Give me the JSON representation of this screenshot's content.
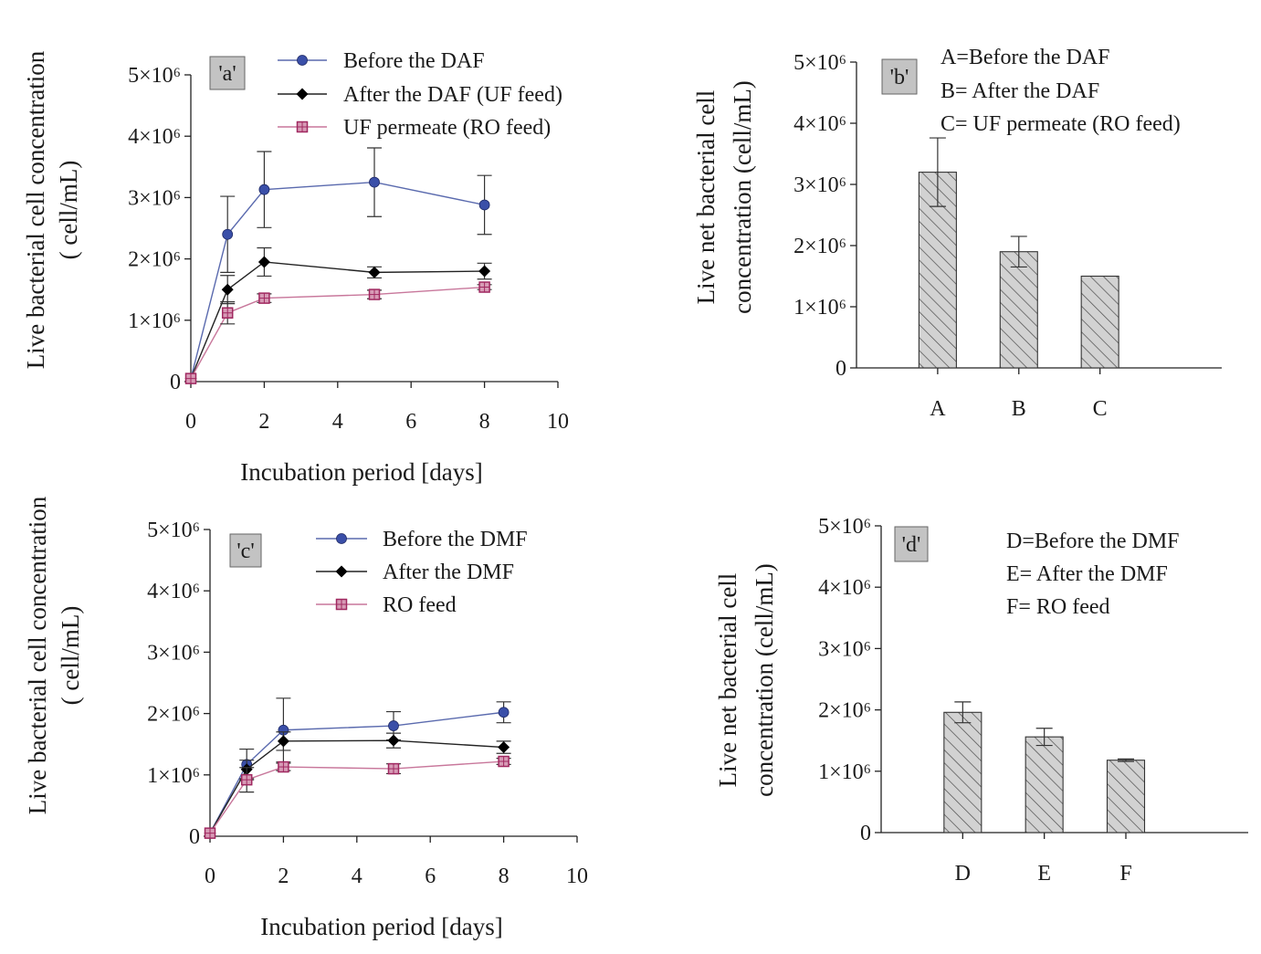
{
  "chart_data": [
    {
      "id": "a",
      "type": "line",
      "panel_tag": "'a'",
      "xlabel": "Incubation period [days]",
      "ylabel_lines": [
        "Live bacterial cell concentration",
        "( cell/mL)"
      ],
      "xlim": [
        0,
        10
      ],
      "ylim": [
        0,
        5000000
      ],
      "xticks": [
        "0",
        "2",
        "4",
        "6",
        "8",
        "10"
      ],
      "yticks": [
        "0",
        "1×10⁶",
        "2×10⁶",
        "3×10⁶",
        "4×10⁶",
        "5×10⁶"
      ],
      "grid": false,
      "legend_position": "top-right",
      "series": [
        {
          "name": "Before the DAF",
          "marker": "circle",
          "color": "#5a6aae",
          "fill": "#3a4fa8",
          "x": [
            0,
            1,
            2,
            5,
            8
          ],
          "y": [
            50000,
            2400000,
            3130000,
            3250000,
            2880000
          ],
          "err": [
            0,
            620000,
            620000,
            560000,
            480000
          ]
        },
        {
          "name": "After the DAF (UF feed)",
          "marker": "diamond",
          "color": "#222222",
          "fill": "#000000",
          "x": [
            0,
            1,
            2,
            5,
            8
          ],
          "y": [
            50000,
            1500000,
            1950000,
            1780000,
            1800000
          ],
          "err": [
            0,
            230000,
            230000,
            90000,
            130000
          ]
        },
        {
          "name": "UF permeate (RO feed)",
          "marker": "square",
          "color": "#c8779b",
          "fill": "#a02860",
          "x": [
            0,
            1,
            2,
            5,
            8
          ],
          "y": [
            50000,
            1120000,
            1360000,
            1420000,
            1540000
          ],
          "err": [
            0,
            180000,
            70000,
            70000,
            40000
          ]
        }
      ]
    },
    {
      "id": "b",
      "type": "bar",
      "panel_tag": "'b'",
      "ylabel_lines": [
        "Live net bacterial cell",
        "concentration (cell/mL)"
      ],
      "ylim": [
        0,
        5000000
      ],
      "yticks": [
        "0",
        "1×10⁶",
        "2×10⁶",
        "3×10⁶",
        "4×10⁶",
        "5×10⁶"
      ],
      "categories": [
        "A",
        "B",
        "C"
      ],
      "values": [
        3200000,
        1900000,
        1500000
      ],
      "err": [
        560000,
        250000,
        0
      ],
      "legend_lines": [
        "A=Before the DAF",
        "B= After the DAF",
        "C= UF permeate (RO feed)"
      ]
    },
    {
      "id": "c",
      "type": "line",
      "panel_tag": "'c'",
      "xlabel": "Incubation period [days]",
      "ylabel_lines": [
        "Live bacterial cell concentration",
        "( cell/mL)"
      ],
      "xlim": [
        0,
        10
      ],
      "ylim": [
        0,
        5000000
      ],
      "xticks": [
        "0",
        "2",
        "4",
        "6",
        "8",
        "10"
      ],
      "yticks": [
        "0",
        "1×10⁶",
        "2×10⁶",
        "3×10⁶",
        "4×10⁶",
        "5×10⁶"
      ],
      "grid": false,
      "legend_position": "top-right",
      "series": [
        {
          "name": "Before the DMF",
          "marker": "circle",
          "color": "#5a6aae",
          "fill": "#3a4fa8",
          "x": [
            0,
            1,
            2,
            5,
            8
          ],
          "y": [
            50000,
            1170000,
            1730000,
            1800000,
            2020000
          ],
          "err": [
            0,
            250000,
            520000,
            230000,
            170000
          ]
        },
        {
          "name": "After the DMF",
          "marker": "diamond",
          "color": "#222222",
          "fill": "#000000",
          "x": [
            0,
            1,
            2,
            5,
            8
          ],
          "y": [
            50000,
            1090000,
            1550000,
            1560000,
            1450000
          ],
          "err": [
            0,
            150000,
            150000,
            120000,
            100000
          ]
        },
        {
          "name": "RO feed",
          "marker": "square",
          "color": "#c8779b",
          "fill": "#a02860",
          "x": [
            0,
            1,
            2,
            5,
            8
          ],
          "y": [
            50000,
            920000,
            1130000,
            1100000,
            1220000
          ],
          "err": [
            0,
            200000,
            60000,
            80000,
            50000
          ]
        }
      ]
    },
    {
      "id": "d",
      "type": "bar",
      "panel_tag": "'d'",
      "ylabel_lines": [
        "Live net bacterial cell",
        "concentration (cell/mL)"
      ],
      "ylim": [
        0,
        5000000
      ],
      "yticks": [
        "0",
        "1×10⁶",
        "2×10⁶",
        "3×10⁶",
        "4×10⁶",
        "5×10⁶"
      ],
      "categories": [
        "D",
        "E",
        "F"
      ],
      "values": [
        1960000,
        1560000,
        1180000
      ],
      "err": [
        170000,
        140000,
        20000
      ],
      "legend_lines": [
        "D=Before the DMF",
        "E= After the DMF",
        "F= RO feed"
      ]
    }
  ]
}
